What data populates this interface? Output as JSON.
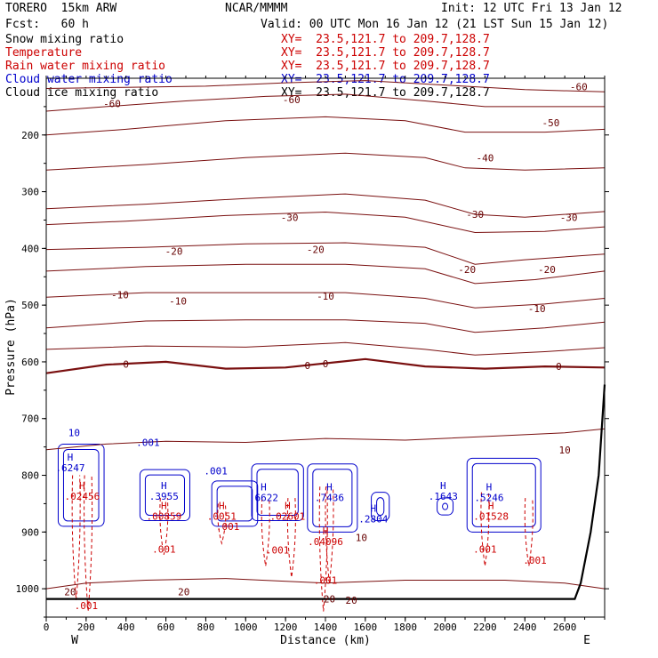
{
  "header": {
    "model": "TORERO  15km ARW",
    "center": "NCAR/MMMM",
    "init": "Init: 12 UTC Fri 13 Jan 12",
    "fcst": "Fcst:   60 h",
    "valid": "Valid: 00 UTC Mon 16 Jan 12 (21 LST Sun 15 Jan 12)"
  },
  "fields": [
    {
      "name": "Snow mixing ratio",
      "xy": "XY=  23.5,121.7 to 209.7,128.7",
      "color": "#000000",
      "xy_color": "#cc0000"
    },
    {
      "name": "Temperature",
      "xy": "XY=  23.5,121.7 to 209.7,128.7",
      "color": "#cc0000",
      "xy_color": "#cc0000"
    },
    {
      "name": "Rain water mixing ratio",
      "xy": "XY=  23.5,121.7 to 209.7,128.7",
      "color": "#cc0000",
      "xy_color": "#cc0000"
    },
    {
      "name": "Cloud water mixing ratio",
      "xy": "XY=  23.5,121.7 to 209.7,128.7",
      "color": "#0000cc",
      "xy_color": "#0000cc"
    },
    {
      "name": "Cloud ice mixing ratio",
      "xy": "XY=  23.5,121.7 to 209.7,128.7",
      "color": "#000000",
      "xy_color": "#000000"
    }
  ],
  "chart_data": {
    "type": "contour",
    "xlabel": "Distance (km)",
    "ylabel": "Pressure (hPa)",
    "xlim": [
      0,
      2800
    ],
    "ylim": [
      1050,
      100
    ],
    "xticks": [
      0,
      200,
      400,
      600,
      800,
      1000,
      1200,
      1400,
      1600,
      1800,
      2000,
      2200,
      2400,
      2600
    ],
    "yticks": [
      200,
      300,
      400,
      500,
      600,
      700,
      800,
      900,
      1000
    ],
    "ytick_labels": [
      "200",
      "300",
      "400",
      "500",
      "600",
      "700",
      "800",
      "900",
      "1000"
    ],
    "x_end_labels": {
      "left": "W",
      "right": "E"
    },
    "temperature_contours": [
      {
        "level": -60,
        "pts": [
          [
            0,
            118
          ],
          [
            400,
            116
          ],
          [
            800,
            114
          ],
          [
            1200,
            108
          ],
          [
            1600,
            104
          ],
          [
            2000,
            112
          ],
          [
            2400,
            120
          ],
          [
            2800,
            124
          ]
        ]
      },
      {
        "level": -60,
        "pts": [
          [
            0,
            158
          ],
          [
            300,
            150
          ],
          [
            700,
            140
          ],
          [
            1100,
            132
          ],
          [
            1500,
            128
          ],
          [
            1900,
            140
          ],
          [
            2200,
            150
          ],
          [
            2800,
            150
          ]
        ]
      },
      {
        "level": -50,
        "pts": [
          [
            0,
            200
          ],
          [
            400,
            190
          ],
          [
            900,
            175
          ],
          [
            1400,
            168
          ],
          [
            1800,
            175
          ],
          [
            2100,
            195
          ],
          [
            2500,
            195
          ],
          [
            2800,
            190
          ]
        ]
      },
      {
        "level": -40,
        "pts": [
          [
            0,
            262
          ],
          [
            500,
            252
          ],
          [
            1000,
            240
          ],
          [
            1500,
            232
          ],
          [
            1900,
            240
          ],
          [
            2100,
            258
          ],
          [
            2400,
            262
          ],
          [
            2800,
            258
          ]
        ]
      },
      {
        "level": -30,
        "pts": [
          [
            0,
            330
          ],
          [
            500,
            322
          ],
          [
            1000,
            312
          ],
          [
            1500,
            304
          ],
          [
            1900,
            315
          ],
          [
            2150,
            340
          ],
          [
            2400,
            345
          ],
          [
            2800,
            335
          ]
        ]
      },
      {
        "level": -30,
        "pts": [
          [
            0,
            358
          ],
          [
            400,
            352
          ],
          [
            900,
            342
          ],
          [
            1400,
            336
          ],
          [
            1800,
            345
          ],
          [
            2150,
            372
          ],
          [
            2500,
            370
          ],
          [
            2800,
            362
          ]
        ]
      },
      {
        "level": -20,
        "pts": [
          [
            0,
            402
          ],
          [
            500,
            398
          ],
          [
            1000,
            392
          ],
          [
            1500,
            390
          ],
          [
            1900,
            398
          ],
          [
            2150,
            428
          ],
          [
            2400,
            420
          ],
          [
            2800,
            410
          ]
        ]
      },
      {
        "level": -20,
        "pts": [
          [
            0,
            440
          ],
          [
            500,
            432
          ],
          [
            1000,
            428
          ],
          [
            1500,
            428
          ],
          [
            1900,
            436
          ],
          [
            2150,
            462
          ],
          [
            2450,
            455
          ],
          [
            2800,
            440
          ]
        ]
      },
      {
        "level": -10,
        "pts": [
          [
            0,
            486
          ],
          [
            500,
            478
          ],
          [
            1000,
            478
          ],
          [
            1500,
            478
          ],
          [
            1900,
            488
          ],
          [
            2150,
            505
          ],
          [
            2500,
            498
          ],
          [
            2800,
            488
          ]
        ]
      },
      {
        "level": -10,
        "pts": [
          [
            0,
            540
          ],
          [
            500,
            528
          ],
          [
            1000,
            526
          ],
          [
            1500,
            526
          ],
          [
            1900,
            532
          ],
          [
            2150,
            548
          ],
          [
            2500,
            540
          ],
          [
            2800,
            530
          ]
        ]
      },
      {
        "level": -10,
        "pts": [
          [
            0,
            578
          ],
          [
            500,
            572
          ],
          [
            1000,
            574
          ],
          [
            1500,
            566
          ],
          [
            1900,
            578
          ],
          [
            2150,
            588
          ],
          [
            2500,
            582
          ],
          [
            2800,
            575
          ]
        ]
      },
      {
        "level": 0,
        "pts": [
          [
            0,
            620
          ],
          [
            300,
            605
          ],
          [
            600,
            600
          ],
          [
            900,
            612
          ],
          [
            1200,
            610
          ],
          [
            1600,
            595
          ],
          [
            1900,
            608
          ],
          [
            2200,
            612
          ],
          [
            2500,
            608
          ],
          [
            2800,
            610
          ]
        ]
      },
      {
        "level": 10,
        "pts": [
          [
            0,
            755
          ],
          [
            300,
            745
          ],
          [
            600,
            740
          ],
          [
            1000,
            742
          ],
          [
            1400,
            735
          ],
          [
            1800,
            738
          ],
          [
            2300,
            730
          ],
          [
            2600,
            725
          ],
          [
            2800,
            718
          ]
        ]
      },
      {
        "level": 20,
        "pts": [
          [
            0,
            1000
          ],
          [
            200,
            990
          ],
          [
            500,
            985
          ],
          [
            900,
            982
          ],
          [
            1400,
            990
          ],
          [
            1800,
            985
          ],
          [
            2300,
            985
          ],
          [
            2600,
            990
          ],
          [
            2800,
            1000
          ]
        ]
      }
    ],
    "maxima": [
      {
        "field": "cloud_water",
        "x": 120,
        "p": 790,
        "label": ".6247"
      },
      {
        "field": "cloud_water",
        "x": 590,
        "p": 840,
        "label": ".3955"
      },
      {
        "field": "cloud_water",
        "x": 1090,
        "p": 842,
        "label": ".6622"
      },
      {
        "field": "cloud_water",
        "x": 1420,
        "p": 842,
        "label": ".7436"
      },
      {
        "field": "cloud_water",
        "x": 1640,
        "p": 880,
        "label": ".2804"
      },
      {
        "field": "cloud_water",
        "x": 1990,
        "p": 840,
        "label": ".1643"
      },
      {
        "field": "cloud_water",
        "x": 2220,
        "p": 842,
        "label": ".5246"
      },
      {
        "field": "rain_water",
        "x": 180,
        "p": 840,
        "label": ".02456"
      },
      {
        "field": "rain_water",
        "x": 590,
        "p": 875,
        "label": ".00859"
      },
      {
        "field": "rain_water",
        "x": 880,
        "p": 875,
        "label": ".0051"
      },
      {
        "field": "rain_water",
        "x": 1210,
        "p": 875,
        "label": ".02601"
      },
      {
        "field": "rain_water",
        "x": 1400,
        "p": 920,
        "label": ".04096"
      },
      {
        "field": "rain_water",
        "x": 2230,
        "p": 875,
        "label": ".01528"
      }
    ],
    "contour_labels": [
      {
        "x": 330,
        "p": 145,
        "text": "-60",
        "color": "#660000"
      },
      {
        "x": 1230,
        "p": 138,
        "text": "-60",
        "color": "#660000"
      },
      {
        "x": 2670,
        "p": 115,
        "text": "-60",
        "color": "#660000"
      },
      {
        "x": 2530,
        "p": 178,
        "text": "-50",
        "color": "#660000"
      },
      {
        "x": 2200,
        "p": 240,
        "text": "-40",
        "color": "#660000"
      },
      {
        "x": 1220,
        "p": 345,
        "text": "-30",
        "color": "#660000"
      },
      {
        "x": 2150,
        "p": 340,
        "text": "-30",
        "color": "#660000"
      },
      {
        "x": 2620,
        "p": 345,
        "text": "-30",
        "color": "#660000"
      },
      {
        "x": 640,
        "p": 405,
        "text": "-20",
        "color": "#660000"
      },
      {
        "x": 1350,
        "p": 402,
        "text": "-20",
        "color": "#660000"
      },
      {
        "x": 2110,
        "p": 437,
        "text": "-20",
        "color": "#660000"
      },
      {
        "x": 2510,
        "p": 437,
        "text": "-20",
        "color": "#660000"
      },
      {
        "x": 370,
        "p": 482,
        "text": "-10",
        "color": "#660000"
      },
      {
        "x": 660,
        "p": 493,
        "text": "-10",
        "color": "#660000"
      },
      {
        "x": 1400,
        "p": 484,
        "text": "-10",
        "color": "#660000"
      },
      {
        "x": 2460,
        "p": 506,
        "text": "-10",
        "color": "#660000"
      },
      {
        "x": 400,
        "p": 604,
        "text": "0",
        "color": "#660000"
      },
      {
        "x": 1310,
        "p": 606,
        "text": "0",
        "color": "#660000"
      },
      {
        "x": 1400,
        "p": 603,
        "text": "0",
        "color": "#660000"
      },
      {
        "x": 2570,
        "p": 608,
        "text": "0",
        "color": "#660000"
      },
      {
        "x": 2600,
        "p": 755,
        "text": "10",
        "color": "#660000"
      },
      {
        "x": 1580,
        "p": 910,
        "text": "10",
        "color": "#660000"
      },
      {
        "x": 120,
        "p": 1005,
        "text": "20",
        "color": "#660000"
      },
      {
        "x": 690,
        "p": 1005,
        "text": "20",
        "color": "#660000"
      },
      {
        "x": 1420,
        "p": 1018,
        "text": "20",
        "color": "#660000"
      },
      {
        "x": 1530,
        "p": 1020,
        "text": "20",
        "color": "#660000"
      },
      {
        "x": 140,
        "p": 725,
        "text": "10",
        "color": "#0000cc"
      },
      {
        "x": 510,
        "p": 742,
        "text": ".001",
        "color": "#0000cc"
      },
      {
        "x": 850,
        "p": 792,
        "text": ".001",
        "color": "#0000cc"
      },
      {
        "x": 910,
        "p": 890,
        "text": ".001",
        "color": "#cc0000"
      },
      {
        "x": 590,
        "p": 930,
        "text": ".001",
        "color": "#cc0000"
      },
      {
        "x": 1160,
        "p": 932,
        "text": ".001",
        "color": "#cc0000"
      },
      {
        "x": 1400,
        "p": 985,
        "text": ".001",
        "color": "#cc0000"
      },
      {
        "x": 2200,
        "p": 930,
        "text": ".001",
        "color": "#cc0000"
      },
      {
        "x": 2450,
        "p": 950,
        "text": ".001",
        "color": "#cc0000"
      },
      {
        "x": 200,
        "p": 1030,
        "text": ".001",
        "color": "#cc0000"
      }
    ],
    "cloud_water_cells": [
      {
        "x0": 60,
        "x1": 290,
        "p0": 745,
        "p1": 890
      },
      {
        "x0": 470,
        "x1": 720,
        "p0": 790,
        "p1": 880
      },
      {
        "x0": 830,
        "x1": 1060,
        "p0": 810,
        "p1": 890
      },
      {
        "x0": 1030,
        "x1": 1290,
        "p0": 780,
        "p1": 880
      },
      {
        "x0": 1310,
        "x1": 1560,
        "p0": 780,
        "p1": 900
      },
      {
        "x0": 1630,
        "x1": 1720,
        "p0": 830,
        "p1": 880
      },
      {
        "x0": 1960,
        "x1": 2040,
        "p0": 840,
        "p1": 870
      },
      {
        "x0": 2110,
        "x1": 2480,
        "p0": 770,
        "p1": 900
      }
    ],
    "rain_water_cells": [
      {
        "x": 150,
        "p0": 800,
        "p1": 1020
      },
      {
        "x": 210,
        "p0": 800,
        "p1": 1040
      },
      {
        "x": 590,
        "p0": 840,
        "p1": 940
      },
      {
        "x": 880,
        "p0": 850,
        "p1": 920
      },
      {
        "x": 1100,
        "p0": 840,
        "p1": 960
      },
      {
        "x": 1230,
        "p0": 840,
        "p1": 980
      },
      {
        "x": 1390,
        "p0": 820,
        "p1": 1040
      },
      {
        "x": 1420,
        "p0": 820,
        "p1": 990
      },
      {
        "x": 2200,
        "p0": 830,
        "p1": 960
      },
      {
        "x": 2420,
        "p0": 840,
        "p1": 960
      }
    ],
    "terrain": [
      [
        0,
        1018
      ],
      [
        2300,
        1018
      ],
      [
        2650,
        1018
      ],
      [
        2680,
        990
      ],
      [
        2730,
        900
      ],
      [
        2770,
        800
      ],
      [
        2800,
        640
      ]
    ]
  }
}
